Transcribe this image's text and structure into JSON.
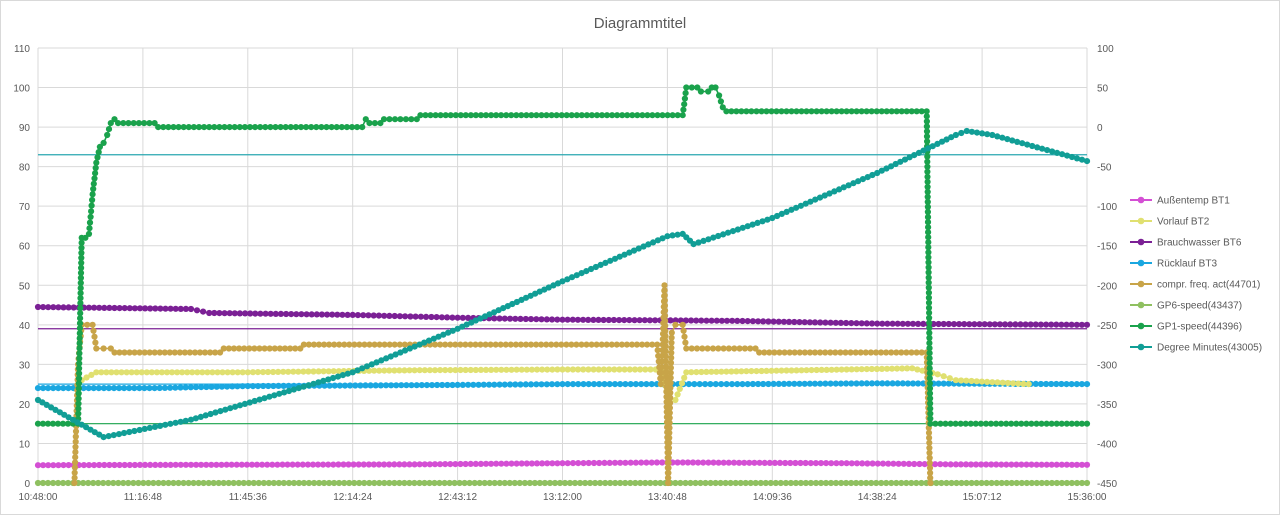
{
  "chart_data": {
    "type": "line",
    "title": "Diagrammtitel",
    "xlabel": "",
    "ylabel": "",
    "x_ticks": [
      "10:48:00",
      "11:16:48",
      "11:45:36",
      "12:14:24",
      "12:43:12",
      "13:12:00",
      "13:40:48",
      "14:09:36",
      "14:38:24",
      "15:07:12",
      "15:36:00"
    ],
    "xlim": [
      "10:48:00",
      "15:36:00"
    ],
    "ylim_left": [
      0,
      110
    ],
    "ylim_right": [
      -450,
      100
    ],
    "y_ticks_left": [
      0,
      10,
      20,
      30,
      40,
      50,
      60,
      70,
      80,
      90,
      100,
      110
    ],
    "y_ticks_right": [
      -450,
      -400,
      -350,
      -300,
      -250,
      -200,
      -150,
      -100,
      -50,
      0,
      50,
      100
    ],
    "grid": true,
    "legend_position": "right",
    "series": [
      {
        "name": "Außentemp BT1",
        "axis": "left",
        "color": "#d44fd4",
        "markers": true,
        "points": [
          [
            "10:48:00",
            4.5
          ],
          [
            "11:30:00",
            4.6
          ],
          [
            "12:30:00",
            4.7
          ],
          [
            "13:12:00",
            5.0
          ],
          [
            "13:40:48",
            5.2
          ],
          [
            "14:30:00",
            5.0
          ],
          [
            "15:00:00",
            4.7
          ],
          [
            "15:36:00",
            4.6
          ]
        ]
      },
      {
        "name": "Vorlauf BT2",
        "axis": "left",
        "color": "#e0e070",
        "markers": true,
        "points": [
          [
            "11:00:00",
            26
          ],
          [
            "11:04:00",
            28
          ],
          [
            "11:45:36",
            28
          ],
          [
            "12:30:00",
            28.5
          ],
          [
            "13:12:00",
            28.7
          ],
          [
            "13:39:00",
            28.7
          ],
          [
            "13:41:00",
            22
          ],
          [
            "13:43:00",
            21
          ],
          [
            "13:46:00",
            28
          ],
          [
            "14:30:00",
            28.7
          ],
          [
            "14:48:00",
            29
          ],
          [
            "14:55:00",
            27.5
          ],
          [
            "15:00:00",
            26
          ],
          [
            "15:10:00",
            25.5
          ],
          [
            "15:20:00",
            25
          ]
        ]
      },
      {
        "name": "Brauchwasser BT6",
        "axis": "left",
        "color": "#7b2095",
        "markers": true,
        "points": [
          [
            "10:48:00",
            44.5
          ],
          [
            "11:30:00",
            44
          ],
          [
            "11:35:00",
            43
          ],
          [
            "12:14:24",
            42.5
          ],
          [
            "12:43:12",
            41.8
          ],
          [
            "13:12:00",
            41.3
          ],
          [
            "14:00:00",
            41
          ],
          [
            "14:38:24",
            40.3
          ],
          [
            "15:36:00",
            40
          ]
        ]
      },
      {
        "name": "Rücklauf BT3",
        "axis": "left",
        "color": "#1aa7e0",
        "markers": true,
        "points": [
          [
            "10:48:00",
            24
          ],
          [
            "11:20:00",
            24
          ],
          [
            "11:45:36",
            24.5
          ],
          [
            "12:43:12",
            24.8
          ],
          [
            "13:12:00",
            25
          ],
          [
            "13:40:48",
            25
          ],
          [
            "14:00:00",
            25
          ],
          [
            "14:38:24",
            25.2
          ],
          [
            "15:36:00",
            25
          ]
        ]
      },
      {
        "name": "compr. freq. act(44701)",
        "axis": "left",
        "color": "#c8a448",
        "markers": true,
        "points": [
          [
            "10:58:00",
            0
          ],
          [
            "10:59:00",
            30
          ],
          [
            "11:00:00",
            40
          ],
          [
            "11:03:00",
            40
          ],
          [
            "11:04:00",
            34
          ],
          [
            "11:08:00",
            34
          ],
          [
            "11:09:00",
            33
          ],
          [
            "11:38:00",
            33
          ],
          [
            "11:39:00",
            34
          ],
          [
            "12:00:00",
            34
          ],
          [
            "12:01:00",
            35
          ],
          [
            "13:38:00",
            35
          ],
          [
            "13:39:00",
            25
          ],
          [
            "13:39:30",
            35
          ],
          [
            "13:40:00",
            50
          ],
          [
            "13:41:00",
            0
          ],
          [
            "13:42:00",
            38
          ],
          [
            "13:43:00",
            40
          ],
          [
            "13:45:00",
            40
          ],
          [
            "13:46:00",
            34
          ],
          [
            "14:05:00",
            34
          ],
          [
            "14:06:00",
            33
          ],
          [
            "14:52:00",
            33
          ],
          [
            "14:53:00",
            0
          ]
        ]
      },
      {
        "name": "GP6-speed(43437)",
        "axis": "left",
        "color": "#8fc060",
        "markers": true,
        "points": [
          [
            "10:48:00",
            0
          ],
          [
            "15:36:00",
            0
          ]
        ]
      },
      {
        "name": "GP1-speed(44396)",
        "axis": "left",
        "color": "#1aa24c",
        "markers": true,
        "points": [
          [
            "10:48:00",
            15
          ],
          [
            "10:59:00",
            15
          ],
          [
            "11:00:00",
            62
          ],
          [
            "11:01:00",
            62
          ],
          [
            "11:02:00",
            63
          ],
          [
            "11:03:00",
            73
          ],
          [
            "11:04:00",
            81
          ],
          [
            "11:05:00",
            85
          ],
          [
            "11:06:00",
            86
          ],
          [
            "11:07:00",
            88
          ],
          [
            "11:08:00",
            91
          ],
          [
            "11:09:00",
            92
          ],
          [
            "11:10:00",
            91
          ],
          [
            "11:20:00",
            91
          ],
          [
            "11:21:00",
            90
          ],
          [
            "12:17:00",
            90
          ],
          [
            "12:18:00",
            92
          ],
          [
            "12:19:00",
            91
          ],
          [
            "12:22:00",
            91
          ],
          [
            "12:23:00",
            92
          ],
          [
            "12:32:00",
            92
          ],
          [
            "12:33:00",
            93
          ],
          [
            "13:45:00",
            93
          ],
          [
            "13:46:00",
            100
          ],
          [
            "13:49:00",
            100
          ],
          [
            "13:50:00",
            99
          ],
          [
            "13:52:00",
            99
          ],
          [
            "13:53:00",
            100
          ],
          [
            "13:54:00",
            100
          ],
          [
            "13:55:00",
            98
          ],
          [
            "13:56:00",
            95
          ],
          [
            "13:57:00",
            94
          ],
          [
            "14:52:00",
            94
          ],
          [
            "14:53:00",
            15
          ],
          [
            "15:36:00",
            15
          ]
        ]
      },
      {
        "name": "Degree Minutes(43005)",
        "axis": "right",
        "color": "#119e96",
        "markers": true,
        "points": [
          [
            "10:48:00",
            -345
          ],
          [
            "11:06:00",
            -392
          ],
          [
            "11:30:00",
            -370
          ],
          [
            "12:14:24",
            -310
          ],
          [
            "12:43:12",
            -255
          ],
          [
            "13:12:00",
            -195
          ],
          [
            "13:40:48",
            -138
          ],
          [
            "13:45:00",
            -135
          ],
          [
            "13:48:00",
            -148
          ],
          [
            "14:09:36",
            -115
          ],
          [
            "14:38:24",
            -58
          ],
          [
            "15:00:00",
            -10
          ],
          [
            "15:03:00",
            -5
          ],
          [
            "15:10:00",
            -10
          ],
          [
            "15:36:00",
            -43
          ]
        ]
      }
    ],
    "reference_lines": [
      {
        "axis": "left",
        "value": 83,
        "color": "#2aa7b0"
      },
      {
        "axis": "left",
        "value": 39,
        "color": "#7b2095"
      },
      {
        "axis": "left",
        "value": 25,
        "color": "#1aa7e0"
      },
      {
        "axis": "left",
        "value": 15,
        "color": "#1aa24c"
      }
    ]
  }
}
